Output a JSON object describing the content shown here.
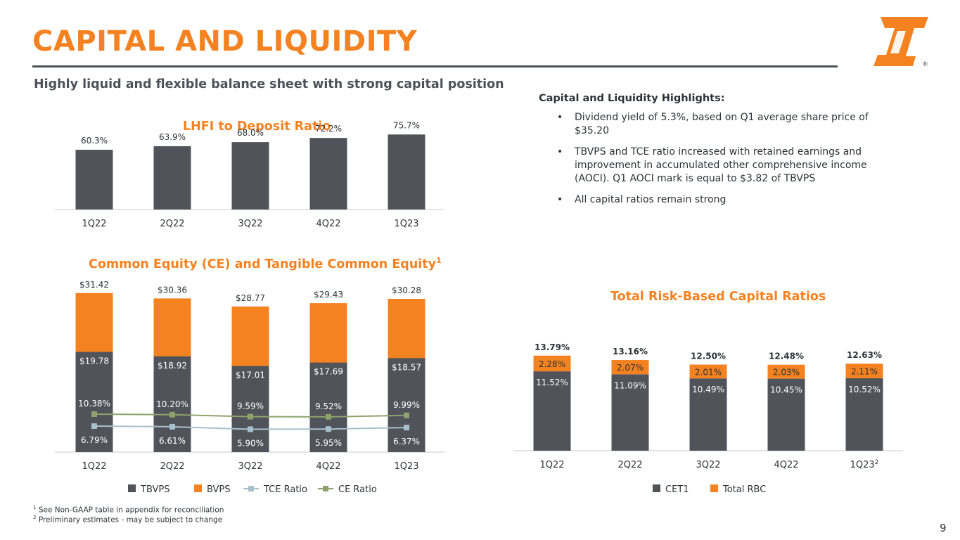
{
  "slide": {
    "title": "CAPITAL AND LIQUIDITY",
    "subtitle": "Highly liquid and flexible balance sheet with strong capital position",
    "page_number": "9",
    "logo_icon": "first-interstate-logo-icon",
    "registered_mark": "®"
  },
  "highlights": {
    "title": "Capital and Liquidity Highlights:",
    "bullet_symbol": "•",
    "bullets": [
      "Dividend yield of 5.3%, based on Q1 average share price of $35.20",
      "TBVPS and TCE ratio increased with retained earnings and improvement in accumulated other comprehensive income (AOCI). Q1 AOCI mark is equal to $3.82 of TBVPS",
      "All capital ratios remain strong"
    ]
  },
  "footnotes": {
    "one": "See Non-GAAP table in appendix for reconciliation",
    "two": "Preliminary estimates - may be subject to change"
  },
  "colors": {
    "accent": "#f58220",
    "bar_dark": "#50535a",
    "tce": "#a8c0cc",
    "ce": "#8da36b",
    "axis": "#c8c8c8"
  },
  "chart_data": [
    {
      "id": "lhfi",
      "type": "bar",
      "title": "LHFI to Deposit Ratio",
      "categories": [
        "1Q22",
        "2Q22",
        "3Q22",
        "4Q22",
        "1Q23"
      ],
      "values": [
        60.3,
        63.9,
        68.0,
        72.2,
        75.7
      ],
      "labels": [
        "60.3%",
        "63.9%",
        "68.0%",
        "72.2%",
        "75.7%"
      ],
      "ylim": [
        0,
        80
      ]
    },
    {
      "id": "ce",
      "type": "bar",
      "title": "Common Equity (CE) and Tangible Common Equity",
      "title_sup": "1",
      "categories": [
        "1Q22",
        "2Q22",
        "3Q22",
        "4Q22",
        "1Q23"
      ],
      "series": [
        {
          "name": "TBVPS",
          "values": [
            19.78,
            18.92,
            17.01,
            17.69,
            18.57
          ],
          "labels": [
            "$19.78",
            "$18.92",
            "$17.01",
            "$17.69",
            "$18.57"
          ]
        },
        {
          "name": "BVPS",
          "values": [
            31.42,
            30.36,
            28.77,
            29.43,
            30.28
          ],
          "labels": [
            "$31.42",
            "$30.36",
            "$28.77",
            "$29.43",
            "$30.28"
          ]
        },
        {
          "name": "TCE Ratio",
          "values": [
            6.79,
            6.61,
            5.9,
            5.95,
            6.37
          ],
          "labels": [
            "6.79%",
            "6.61%",
            "5.90%",
            "5.95%",
            "6.37%"
          ]
        },
        {
          "name": "CE Ratio",
          "values": [
            10.38,
            10.2,
            9.59,
            9.52,
            9.99
          ],
          "labels": [
            "10.38%",
            "10.20%",
            "9.59%",
            "9.52%",
            "9.99%"
          ]
        }
      ],
      "legend": [
        "TBVPS",
        "BVPS",
        "TCE Ratio",
        "CE Ratio"
      ],
      "ylim": [
        0,
        32
      ]
    },
    {
      "id": "rbc",
      "type": "bar",
      "stacked": true,
      "title": "Total Risk-Based Capital Ratios",
      "categories": [
        "1Q22",
        "2Q22",
        "3Q22",
        "4Q22",
        "1Q23"
      ],
      "category_sups": [
        "",
        "",
        "",
        "",
        "2"
      ],
      "series": [
        {
          "name": "CET1",
          "values": [
            11.52,
            11.09,
            10.49,
            10.45,
            10.52
          ],
          "labels": [
            "11.52%",
            "11.09%",
            "10.49%",
            "10.45%",
            "10.52%"
          ]
        },
        {
          "name": "Total RBC",
          "values": [
            2.28,
            2.07,
            2.01,
            2.03,
            2.11
          ],
          "labels": [
            "2.28%",
            "2.07%",
            "2.01%",
            "2.03%",
            "2.11%"
          ]
        }
      ],
      "totals": [
        13.79,
        13.16,
        12.5,
        12.48,
        12.63
      ],
      "total_labels": [
        "13.79%",
        "13.16%",
        "12.50%",
        "12.48%",
        "12.63%"
      ],
      "legend": [
        "CET1",
        "Total RBC"
      ],
      "ylim": [
        0,
        14
      ]
    }
  ]
}
